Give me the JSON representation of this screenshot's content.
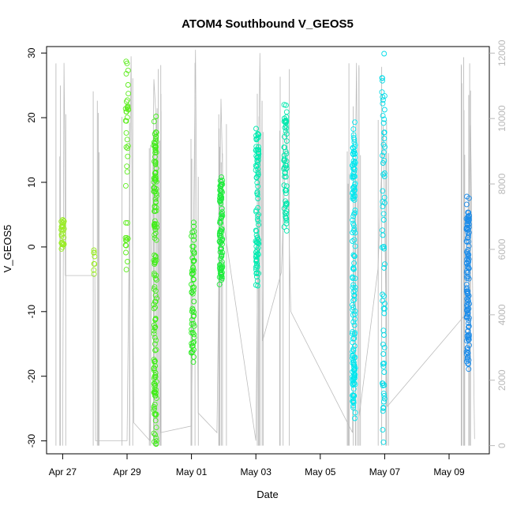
{
  "chart_data": {
    "type": "scatter",
    "title": "ATOM4 Southbound V_GEOS5",
    "xlabel": "Date",
    "ylabel": "V_GEOS5",
    "x_axis": {
      "range": [
        "2016-04-26T12:00",
        "2016-05-10T06:00"
      ],
      "tick_labels": [
        "Apr 27",
        "Apr 29",
        "May 01",
        "May 03",
        "May 05",
        "May 07",
        "May 09"
      ],
      "tick_dates": [
        "2016-04-27",
        "2016-04-29",
        "2016-05-01",
        "2016-05-03",
        "2016-05-05",
        "2016-05-07",
        "2016-05-09"
      ]
    },
    "y_axis": {
      "range": [
        -32,
        31
      ],
      "ticks": [
        -30,
        -20,
        -10,
        0,
        10,
        20,
        30
      ],
      "tick_labels": [
        "-30",
        "-20",
        "-10",
        "0",
        "10",
        "20",
        "30"
      ]
    },
    "y2_axis": {
      "range": [
        -250,
        12200
      ],
      "ticks": [
        0,
        2000,
        4000,
        6000,
        8000,
        10000,
        12000
      ],
      "tick_labels": [
        "0",
        "2000",
        "4000",
        "6000",
        "8000",
        "10000",
        "12000"
      ],
      "color": "#b8b8b8"
    },
    "legend": "none",
    "grid": false,
    "colors": {
      "line": "#bdbdbd",
      "point_gradient": [
        "#9aec27",
        "#2bec1f",
        "#00eab4",
        "#00e8ee",
        "#1e8ce8"
      ]
    },
    "clusters": [
      {
        "center": "2016-04-27T00:00",
        "y_min": -0.3,
        "y_max": 4.2,
        "n": 28,
        "color": "#9aec27"
      },
      {
        "center": "2016-04-28T00:00",
        "y_min": -4.2,
        "y_max": -0.5,
        "n": 8,
        "color": "#9aec27"
      },
      {
        "center": "2016-04-29T00:00",
        "y_min": -3.5,
        "y_max": 28.7,
        "n": 40,
        "color": "#5eec1f"
      },
      {
        "center": "2016-04-29T21:00",
        "y_min": -30.5,
        "y_max": 20.2,
        "n": 160,
        "color": "#44ec1c"
      },
      {
        "center": "2016-05-01T01:00",
        "y_min": -17.8,
        "y_max": 3.8,
        "n": 60,
        "color": "#2bec1f"
      },
      {
        "center": "2016-05-01T22:00",
        "y_min": -5.8,
        "y_max": 10.8,
        "n": 90,
        "color": "#1eec3c"
      },
      {
        "center": "2016-05-03T01:00",
        "y_min": -6.0,
        "y_max": 18.3,
        "n": 90,
        "color": "#00ebb0"
      },
      {
        "center": "2016-05-03T22:00",
        "y_min": 2.5,
        "y_max": 22.0,
        "n": 60,
        "color": "#00e8ad"
      },
      {
        "center": "2016-05-06T01:00",
        "y_min": -26.5,
        "y_max": 19.3,
        "n": 150,
        "color": "#00e6ee"
      },
      {
        "center": "2016-05-06T23:00",
        "y_min": -30.2,
        "y_max": 29.9,
        "n": 70,
        "color": "#00dce8"
      },
      {
        "center": "2016-05-09T14:00",
        "y_min": -18.9,
        "y_max": 7.8,
        "n": 130,
        "color": "#1e8ce8"
      }
    ],
    "altitude_trace": [
      [
        "2016-04-27T00:00",
        0
      ],
      [
        "2016-04-27T01:00",
        11700
      ],
      [
        "2016-04-27T01:30",
        9600
      ],
      [
        "2016-04-27T02:00",
        5200
      ],
      [
        "2016-04-28T00:00",
        5200
      ],
      [
        "2016-04-28T00:30",
        150
      ],
      [
        "2016-04-29T00:00",
        150
      ],
      [
        "2016-04-29T03:00",
        11900
      ],
      [
        "2016-04-29T05:00",
        700
      ],
      [
        "2016-04-29T17:00",
        150
      ],
      [
        "2016-04-29T20:00",
        11200
      ],
      [
        "2016-04-29T23:00",
        9000
      ],
      [
        "2016-04-30T01:00",
        400
      ],
      [
        "2016-05-01T00:00",
        600
      ],
      [
        "2016-05-01T03:00",
        12100
      ],
      [
        "2016-05-01T05:00",
        1000
      ],
      [
        "2016-05-01T19:00",
        400
      ],
      [
        "2016-05-01T22:00",
        10600
      ],
      [
        "2016-05-02T00:00",
        6800
      ],
      [
        "2016-05-03T00:00",
        150
      ],
      [
        "2016-05-03T03:00",
        12000
      ],
      [
        "2016-05-03T05:00",
        3200
      ],
      [
        "2016-05-03T19:00",
        5300
      ],
      [
        "2016-05-03T23:00",
        9900
      ],
      [
        "2016-05-04T02:00",
        4100
      ],
      [
        "2016-05-06T00:00",
        400
      ],
      [
        "2016-05-06T03:00",
        11700
      ],
      [
        "2016-05-06T05:00",
        900
      ],
      [
        "2016-05-06T19:00",
        5400
      ],
      [
        "2016-05-06T23:00",
        9800
      ],
      [
        "2016-05-07T02:00",
        1200
      ],
      [
        "2016-05-09T12:00",
        4000
      ],
      [
        "2016-05-09T16:00",
        9800
      ],
      [
        "2016-05-09T19:00",
        200
      ]
    ]
  }
}
